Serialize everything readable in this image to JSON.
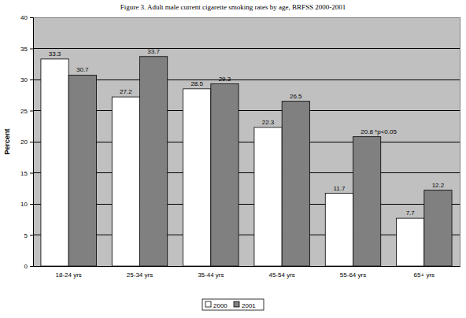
{
  "chart_data": {
    "type": "bar",
    "title": "Figure 3.  Adult male current cigarette smoking rates by age,  BRFSS 2000-2001",
    "y_label": "Percent",
    "categories": [
      "18-24 yrs",
      "25-34 yrs",
      "35-44 yrs",
      "45-54 yrs",
      "55-64 yrs",
      "65+ yrs"
    ],
    "series": [
      {
        "name": "2000",
        "color": "#ffffff",
        "values": [
          33.3,
          27.2,
          28.5,
          22.3,
          11.7,
          7.7
        ]
      },
      {
        "name": "2001",
        "color": "#808080",
        "values": [
          30.7,
          33.7,
          29.3,
          26.5,
          20.8,
          12.2
        ]
      }
    ],
    "annotations": [
      {
        "text": "*p<0.05",
        "category": "55-64 yrs",
        "series": "2001"
      }
    ],
    "ylim": [
      0,
      40
    ],
    "yticks": [
      0,
      5,
      10,
      15,
      20,
      25,
      30,
      35,
      40
    ],
    "grid": true,
    "data_labels": true,
    "legend": "bottom"
  }
}
